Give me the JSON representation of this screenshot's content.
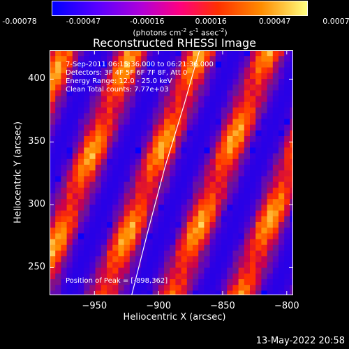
{
  "colorbar": {
    "ticks": [
      "-0.00078",
      "-0.00047",
      "-0.00016",
      "0.00016",
      "0.00047",
      "0.00078"
    ],
    "units_text": "(photons cm",
    "units_sup1": "-2",
    "units_s": " s",
    "units_sup2": "-1",
    "units_asec": " asec",
    "units_sup3": "-2",
    "units_close": ")",
    "colors": [
      "#0000ff",
      "#5a00ff",
      "#b000d8",
      "#ff0080",
      "#ff3000",
      "#ff8c00",
      "#ffff80"
    ]
  },
  "chart_data": {
    "type": "heatmap",
    "title": "Reconstructed RHESSI Image",
    "xlabel": "Heliocentric X (arcsec)",
    "ylabel": "Heliocentric Y (arcsec)",
    "x_ticks": [
      -950,
      -900,
      -850,
      -800
    ],
    "y_ticks": [
      250,
      300,
      350,
      400
    ],
    "xlim": [
      -985,
      -795
    ],
    "ylim": [
      228,
      423
    ],
    "limb_curve": [
      [
        -921,
        228
      ],
      [
        -908,
        280
      ],
      [
        -895,
        330
      ],
      [
        -880,
        380
      ],
      [
        -868,
        423
      ]
    ],
    "peak_position": [
      -898,
      362
    ],
    "annotations": [
      "7-Sep-2011 06:15:36.000 to 06:21:36.000",
      "Detectors: 3F 4F 5F 6F 7F 8F, Att 0",
      "Energy Range: 12.0 - 25.0 keV",
      "Clean    Total counts: 7.77e+03"
    ],
    "peak_label": "Position of Peak = [-898,362]"
  },
  "footer": {
    "timestamp": "13-May-2022 20:58"
  }
}
